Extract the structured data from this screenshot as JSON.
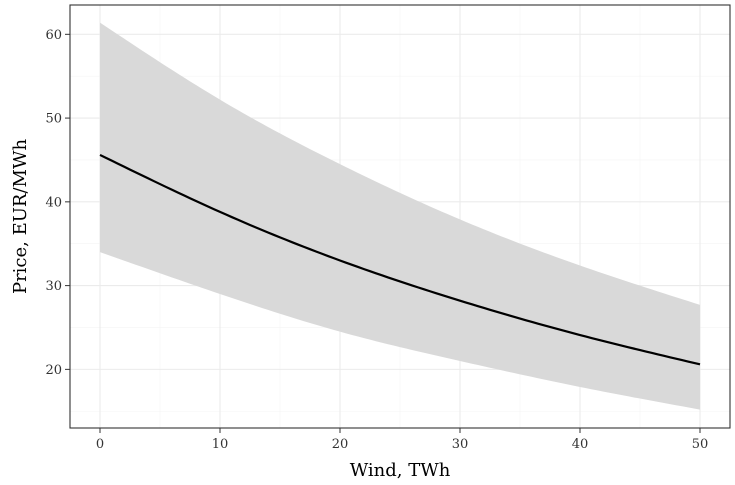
{
  "chart_data": {
    "type": "line",
    "title": "",
    "xlabel": "Wind, TWh",
    "ylabel": "Price, EUR/MWh",
    "xlim": [
      -2.5,
      52.5
    ],
    "ylim": [
      13.0,
      63.5
    ],
    "x_ticks": [
      0,
      10,
      20,
      30,
      40,
      50
    ],
    "y_ticks": [
      20,
      30,
      40,
      50,
      60
    ],
    "x_tick_labels": [
      "0",
      "10",
      "20",
      "30",
      "40",
      "50"
    ],
    "y_tick_labels": [
      "20",
      "30",
      "40",
      "50",
      "60"
    ],
    "grid": true,
    "legend": "none",
    "series": [
      {
        "x": [
          0,
          10,
          20,
          30,
          40,
          50
        ],
        "y": [
          45.6,
          38.8,
          33.0,
          28.2,
          24.1,
          20.6
        ],
        "lower": [
          34.0,
          29.0,
          24.5,
          21.0,
          17.9,
          15.2
        ],
        "upper": [
          61.4,
          52.2,
          44.5,
          37.9,
          32.4,
          27.7
        ]
      }
    ],
    "colors": {
      "line": "#000000",
      "band": "#d9d9d9",
      "grid": "#ebebeb",
      "axis": "#333333"
    }
  }
}
